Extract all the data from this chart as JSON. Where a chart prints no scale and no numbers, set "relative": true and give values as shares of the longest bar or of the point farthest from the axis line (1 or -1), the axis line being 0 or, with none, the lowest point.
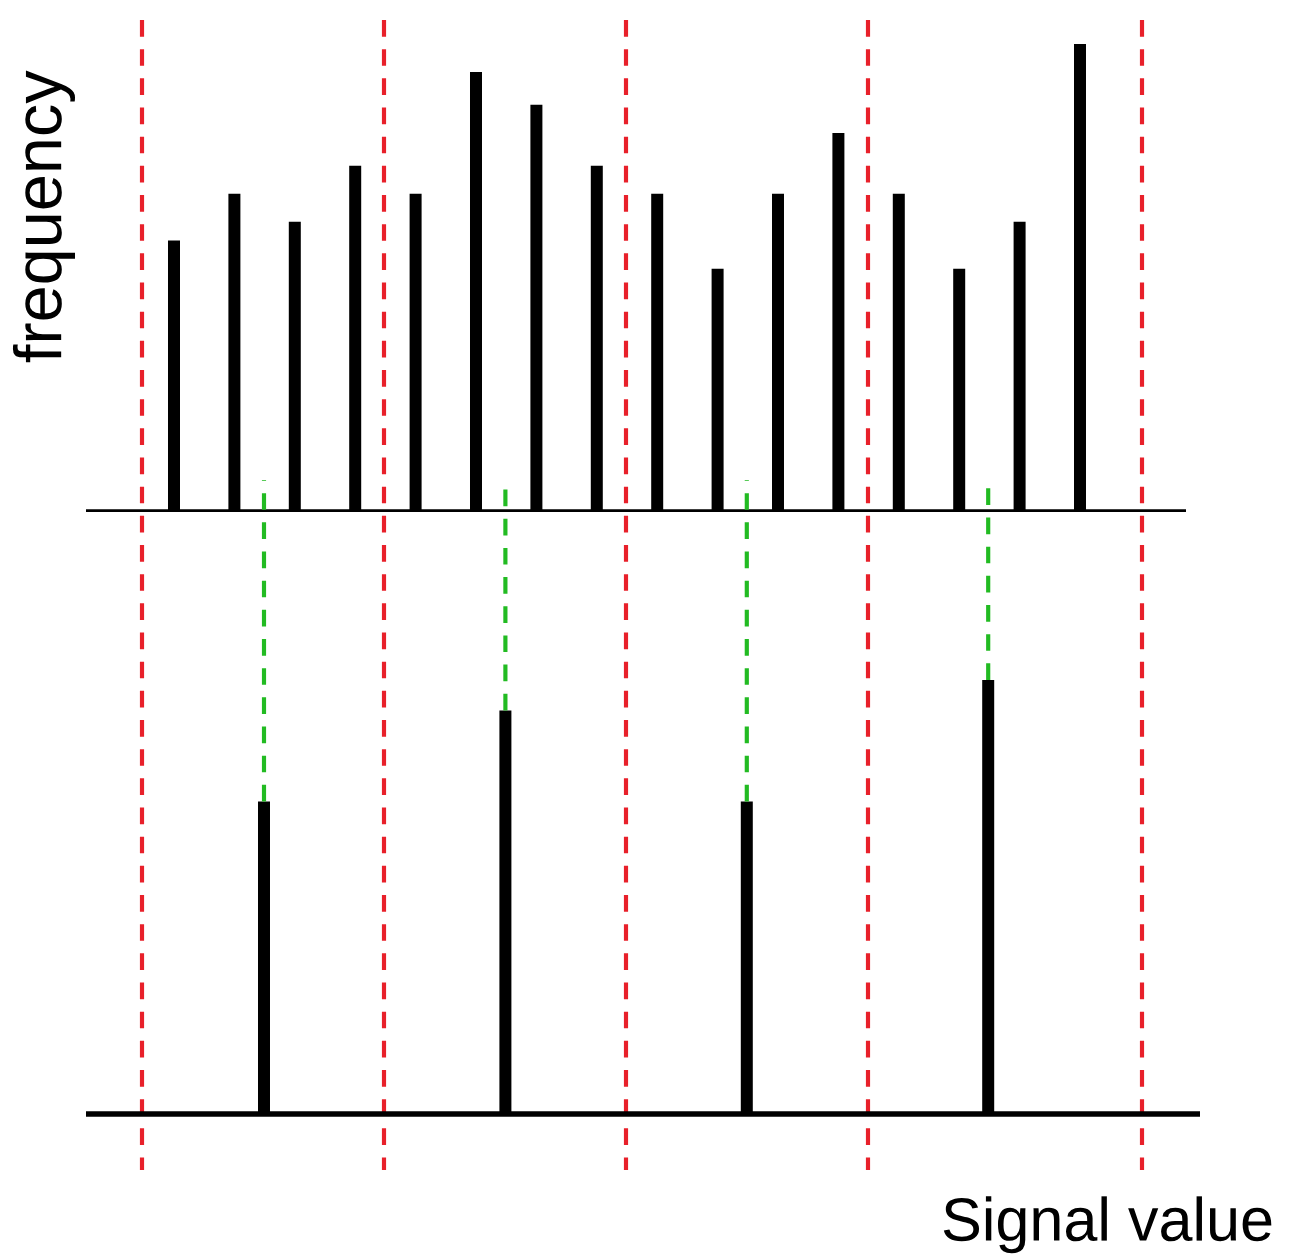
{
  "chart_data": [
    {
      "type": "bar",
      "relative": true,
      "ylabel": "frequency",
      "categories": [
        null,
        null,
        null,
        null,
        null,
        null,
        null,
        null,
        null,
        null,
        null,
        null,
        null,
        null,
        null,
        null
      ],
      "series": [
        {
          "color": "#000000",
          "values": [
            0.58,
            0.68,
            0.62,
            0.74,
            0.68,
            0.94,
            0.87,
            0.74,
            0.68,
            0.52,
            0.68,
            0.81,
            0.68,
            0.52,
            0.62,
            1.0
          ]
        }
      ]
    },
    {
      "type": "bar",
      "relative": true,
      "xlabel": "Signal value",
      "categories": [
        null,
        null,
        null,
        null
      ],
      "series": [
        {
          "color": "#000000",
          "values": [
            0.72,
            0.93,
            0.72,
            1.0
          ]
        }
      ]
    }
  ]
}
